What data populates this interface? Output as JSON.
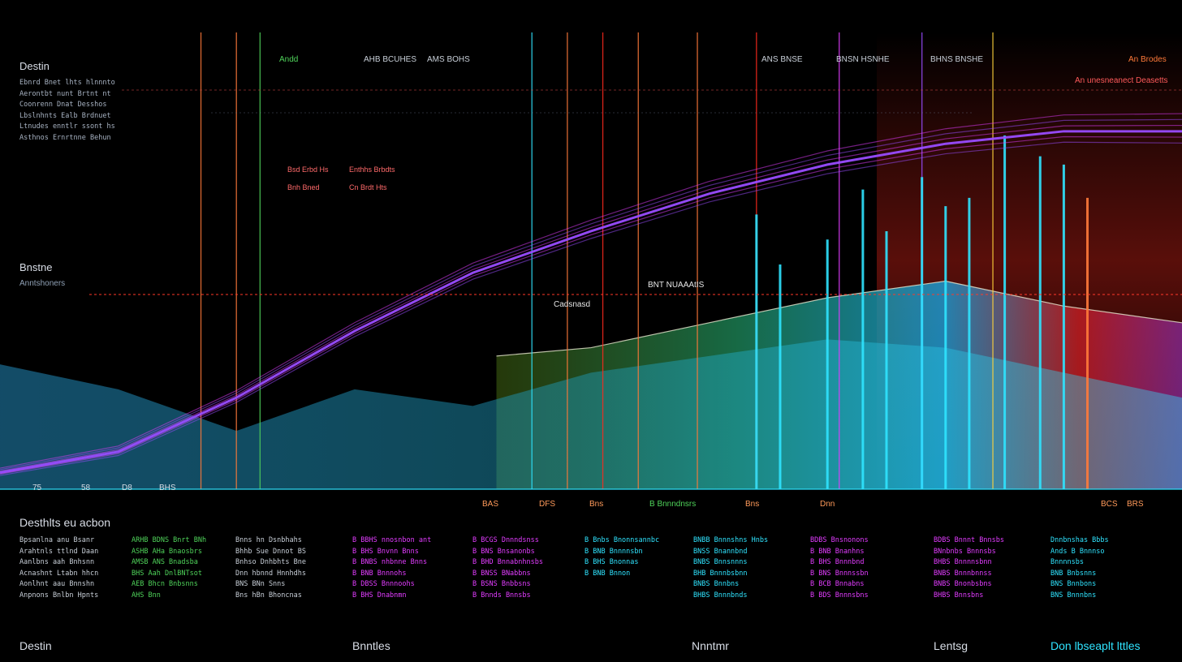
{
  "colors": {
    "background": "#000000",
    "magenta": "#e23cff",
    "violet": "#9a4cff",
    "cyan": "#2fe4ff",
    "teal": "#1aa6c9",
    "blue": "#1e6bff",
    "green": "#4fd35a",
    "olive": "#9bb02a",
    "red": "#ff2a1e",
    "orange": "#ff7a3a",
    "yellow": "#ffd23a",
    "text": "#cfd6e0"
  },
  "labels": {
    "top_left_title": "Destin",
    "mid_left_title": "Bnstne",
    "mid_left_sub": "Anntshoners",
    "bottom_left_header": "Desthlts eu acbon",
    "footer": {
      "col1": "Destin",
      "col2": "Bnntles",
      "col3": "Nnntmr",
      "col4": "Lentsg",
      "col5": "Don lbseaplt lttles"
    },
    "top_right_caption": "An unesneanect Deasetts",
    "mid_marker": "BNT NUAAAtIS",
    "mid_marker2": "Cadsnasd"
  },
  "left_notes": [
    "Ebnrd Bnet lhts hlnnnto",
    "Aerontbt nunt Brtnt nt",
    "Coonrenn Dnat Desshos",
    "Lbslnhnts Ealb Brdnuet",
    "Ltnudes enntlr ssont hs",
    "Asthnos Ernrtnne Behun"
  ],
  "top_labels": [
    "Andd",
    "AHB BCUHES",
    "AMS BOHS",
    "ANS BNSE",
    "BNSN HSNHE",
    "BHNS BNSHE",
    "An Brodes"
  ],
  "figure_captions": [
    "Bsd Erbd Hs",
    "Enthhs Brbdts",
    "Bnh Bned",
    "Cn Brdt Hts"
  ],
  "chart_data": {
    "type": "area",
    "title": "",
    "xlabel": "",
    "ylabel": "",
    "x_tick_labels": [
      "75",
      "58",
      "D8",
      "BHS",
      "BAS",
      "DFS",
      "Bns",
      "B Bnnndnsrs",
      "Bns",
      "Dnn",
      "BCS",
      "BRS"
    ],
    "ylim": [
      0,
      100
    ],
    "series": [
      {
        "name": "Magenta trend",
        "color": "#e23cff",
        "x": [
          0,
          10,
          20,
          30,
          40,
          50,
          60,
          70,
          80,
          90,
          100
        ],
        "values": [
          4,
          9,
          22,
          38,
          52,
          62,
          71,
          78,
          83,
          86,
          86
        ]
      },
      {
        "name": "Cyan area",
        "color": "#2fe4ff",
        "x": [
          0,
          10,
          20,
          30,
          40,
          50,
          60,
          70,
          80,
          90,
          100
        ],
        "values": [
          30,
          24,
          14,
          24,
          20,
          28,
          32,
          36,
          34,
          28,
          22
        ]
      },
      {
        "name": "Gradient area",
        "color": "#9bb02a",
        "x": [
          42,
          50,
          60,
          70,
          80,
          90,
          100
        ],
        "values": [
          32,
          34,
          40,
          46,
          50,
          44,
          40
        ]
      }
    ],
    "spikes": [
      {
        "x": 64,
        "value": 66,
        "color": "#2fe4ff"
      },
      {
        "x": 66,
        "value": 54,
        "color": "#2fe4ff"
      },
      {
        "x": 70,
        "value": 60,
        "color": "#2fe4ff"
      },
      {
        "x": 73,
        "value": 72,
        "color": "#2fe4ff"
      },
      {
        "x": 75,
        "value": 62,
        "color": "#2fe4ff"
      },
      {
        "x": 78,
        "value": 75,
        "color": "#2fe4ff"
      },
      {
        "x": 80,
        "value": 68,
        "color": "#2fe4ff"
      },
      {
        "x": 82,
        "value": 70,
        "color": "#2fe4ff"
      },
      {
        "x": 85,
        "value": 85,
        "color": "#2fe4ff"
      },
      {
        "x": 88,
        "value": 80,
        "color": "#2fe4ff"
      },
      {
        "x": 90,
        "value": 78,
        "color": "#2fe4ff"
      },
      {
        "x": 92,
        "value": 70,
        "color": "#ff7a3a"
      }
    ],
    "vlines": [
      {
        "x": 17,
        "color": "#ff7a3a"
      },
      {
        "x": 20,
        "color": "#ff7a3a"
      },
      {
        "x": 22,
        "color": "#4fd35a"
      },
      {
        "x": 45,
        "color": "#2fe4ff"
      },
      {
        "x": 48,
        "color": "#ff7a3a"
      },
      {
        "x": 51,
        "color": "#ff2a1e"
      },
      {
        "x": 54,
        "color": "#ff7a3a"
      },
      {
        "x": 59,
        "color": "#ff7a3a"
      },
      {
        "x": 64,
        "color": "#ff2a1e"
      },
      {
        "x": 71,
        "color": "#e23cff"
      },
      {
        "x": 78,
        "color": "#9a4cff"
      },
      {
        "x": 84,
        "color": "#ffd23a"
      }
    ]
  },
  "legend_blocks": [
    {
      "title": "",
      "color": "#c8cfd8",
      "lines": [
        "Bpsanlna anu Bsanr",
        "Arahtnls ttlnd Daan",
        "Aanlbns aah Bnhsnn",
        "Acnashnt Ltabn hhcn",
        "Aonlhnt aau Bnnshn",
        "Anpnons Bnlbn Hpnts"
      ]
    },
    {
      "title": "",
      "color": "#4fd35a",
      "lines": [
        "ARHB BDNS Bnrt BNh",
        "ASHB AHa Bnaosbrs",
        "AMSB ANS Bnadsba",
        "BHS Aah DnlBNTsot",
        "AEB Bhcn Bnbsnns",
        "AHS Bnn"
      ]
    },
    {
      "title": "",
      "color": "#c8cfd8",
      "lines": [
        "Bnns hn Dsnbhahs",
        "Bhhb Sue Dnnot BS",
        "Bnhso Dnhbhts Bne",
        "Dnn hbnnd Hnnhdhs",
        "BNS BNn Snns",
        "Bns hBn Bhoncnas"
      ]
    },
    {
      "title": "",
      "color": "#e23cff",
      "lines": [
        "B BBHS nnosnbon ant",
        "B BHS Bnvnn Bnns",
        "B BNBS nhbnne Bnns",
        "B BNB Bnnnohs",
        "B DBSS Bnnnoohs",
        "B BHS Dnabnmn"
      ]
    },
    {
      "title": "",
      "color": "#e23cff",
      "lines": [
        "B BCGS Dnnndsnss",
        "B BNS Bnsanonbs",
        "B BHD Bnnabnhnsbs",
        "B BNSS BNabbns",
        "B BSNS Bnbbsns",
        "B Bnnds Bnnsbs"
      ]
    },
    {
      "title": "",
      "color": "#2fe4ff",
      "lines": [
        "B Bnbs Bnonnsannbc",
        "B BNB Bnnnnsbn",
        "B BHS Bnonnas",
        "B BNB Bnnon",
        "",
        ""
      ]
    },
    {
      "title": "",
      "color": "#2fe4ff",
      "lines": [
        "BNBB Bnnnshns Hnbs",
        "BNSS Bnannbnd",
        "BNBS Bnnsnnns",
        "BHB Bnnnbsbnn",
        "BNBS Bnnbns",
        "BHBS Bnnnbnds"
      ]
    },
    {
      "title": "",
      "color": "#e23cff",
      "lines": [
        "BDBS Bnsnonons",
        "B BNB Bnanhns",
        "B BHS Bnnnbnd",
        "B BNS Bnnnssbn",
        "B BCB Bnnabns",
        "B BDS Bnnnsbns"
      ]
    },
    {
      "title": "",
      "color": "#e23cff",
      "lines": [
        "BDBS Bnnnt Bnnsbs",
        "BNnbnbs Bnnnsbs",
        "BHBS Bnnnnsbnn",
        "BNBS Bnnnbnnss",
        "BNBS Bnonbsbns",
        "BHBS Bnnsbns"
      ]
    },
    {
      "title": "",
      "color": "#2fe4ff",
      "lines": [
        "Dnnbnshas Bbbs",
        "Ands B Bnnnso",
        "Bnnnnsbs",
        "BNB Bnbsnns",
        "BNS Bnnbons",
        "BNS Bnnnbns"
      ]
    }
  ]
}
